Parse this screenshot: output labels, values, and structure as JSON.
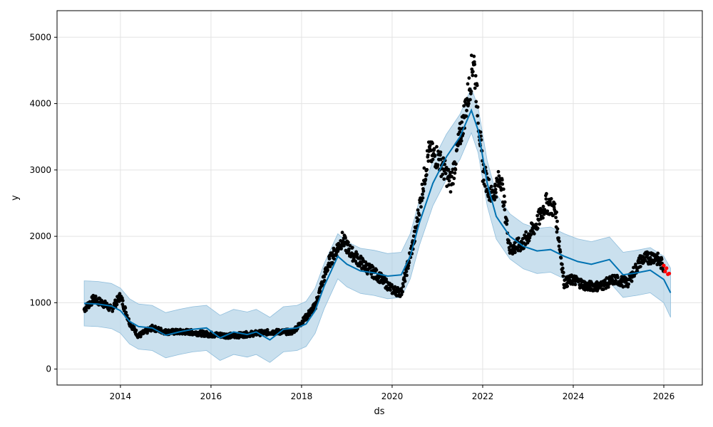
{
  "chart_data": {
    "type": "scatter",
    "title": "",
    "xlabel": "ds",
    "ylabel": "y",
    "xlim": [
      2012.6,
      2026.85
    ],
    "ylim": [
      -240,
      5400
    ],
    "xticks": [
      2014,
      2016,
      2018,
      2020,
      2022,
      2024,
      2026
    ],
    "xtick_labels": [
      "2014",
      "2016",
      "2018",
      "2020",
      "2022",
      "2024",
      "2026"
    ],
    "yticks": [
      0,
      1000,
      2000,
      3000,
      4000,
      5000
    ],
    "ytick_labels": [
      "0",
      "1000",
      "2000",
      "3000",
      "4000",
      "5000"
    ],
    "grid": true,
    "legend": "none",
    "colors": {
      "observed": "#000000",
      "forecast_line": "#0072B2",
      "uncertainty_band": "#A6CBE3",
      "highlight": "#FF0000"
    },
    "forecast": {
      "x": [
        2013.2,
        2013.5,
        2013.8,
        2014.0,
        2014.2,
        2014.4,
        2014.7,
        2015.0,
        2015.3,
        2015.6,
        2015.9,
        2016.2,
        2016.5,
        2016.8,
        2017.0,
        2017.3,
        2017.6,
        2017.9,
        2018.1,
        2018.3,
        2018.5,
        2018.8,
        2019.0,
        2019.3,
        2019.6,
        2019.9,
        2020.2,
        2020.4,
        2020.6,
        2020.9,
        2021.2,
        2021.5,
        2021.75,
        2021.9,
        2022.1,
        2022.3,
        2022.6,
        2022.9,
        2023.2,
        2023.5,
        2023.8,
        2024.1,
        2024.4,
        2024.8,
        2025.1,
        2025.4,
        2025.7,
        2026.0,
        2026.15
      ],
      "yhat": [
        990,
        980,
        950,
        880,
        720,
        640,
        620,
        510,
        560,
        600,
        620,
        470,
        560,
        520,
        560,
        440,
        600,
        620,
        680,
        880,
        1250,
        1700,
        1580,
        1480,
        1450,
        1400,
        1420,
        1700,
        2200,
        2800,
        3200,
        3500,
        3900,
        3600,
        2800,
        2300,
        2000,
        1850,
        1780,
        1800,
        1700,
        1620,
        1580,
        1650,
        1420,
        1450,
        1490,
        1350,
        1150
      ],
      "lower": [
        650,
        640,
        610,
        540,
        380,
        300,
        280,
        170,
        220,
        260,
        280,
        130,
        220,
        180,
        220,
        100,
        260,
        280,
        340,
        540,
        910,
        1360,
        1240,
        1140,
        1110,
        1060,
        1080,
        1360,
        1860,
        2460,
        2860,
        3160,
        3560,
        3260,
        2460,
        1960,
        1660,
        1510,
        1440,
        1460,
        1360,
        1280,
        1240,
        1310,
        1080,
        1110,
        1150,
        1000,
        780
      ],
      "upper": [
        1330,
        1320,
        1290,
        1220,
        1060,
        980,
        960,
        850,
        900,
        940,
        960,
        810,
        900,
        860,
        900,
        780,
        940,
        960,
        1020,
        1220,
        1590,
        2040,
        1920,
        1820,
        1790,
        1740,
        1760,
        2040,
        2540,
        3140,
        3540,
        3840,
        4240,
        3940,
        3140,
        2640,
        2340,
        2190,
        2120,
        2140,
        2040,
        1960,
        1920,
        1990,
        1760,
        1790,
        1830,
        1700,
        1520
      ]
    },
    "observed_trend": {
      "x": [
        2013.2,
        2013.4,
        2013.6,
        2013.8,
        2014.0,
        2014.2,
        2014.4,
        2014.7,
        2015.0,
        2015.5,
        2016.0,
        2016.5,
        2017.0,
        2017.4,
        2017.8,
        2018.0,
        2018.3,
        2018.6,
        2018.9,
        2019.1,
        2019.4,
        2019.7,
        2020.0,
        2020.2,
        2020.5,
        2020.8,
        2021.0,
        2021.3,
        2021.5,
        2021.7,
        2021.8,
        2022.0,
        2022.2,
        2022.4,
        2022.6,
        2022.9,
        2023.2,
        2023.4,
        2023.6,
        2023.8,
        2024.0,
        2024.3,
        2024.6,
        2024.9,
        2025.2,
        2025.5,
        2025.8,
        2026.0
      ],
      "y": [
        900,
        1050,
        1000,
        900,
        1100,
        700,
        500,
        620,
        560,
        560,
        520,
        500,
        540,
        560,
        560,
        700,
        950,
        1600,
        1950,
        1750,
        1550,
        1400,
        1200,
        1150,
        2000,
        3250,
        3200,
        2800,
        3500,
        4200,
        4700,
        3000,
        2600,
        2900,
        1800,
        1900,
        2200,
        2500,
        2400,
        1300,
        1350,
        1250,
        1250,
        1350,
        1300,
        1650,
        1700,
        1550
      ]
    },
    "highlight_points": {
      "x": [
        2026.0,
        2026.03,
        2026.06,
        2026.09,
        2026.12
      ],
      "y": [
        1560,
        1470,
        1520,
        1430,
        1440
      ]
    }
  }
}
